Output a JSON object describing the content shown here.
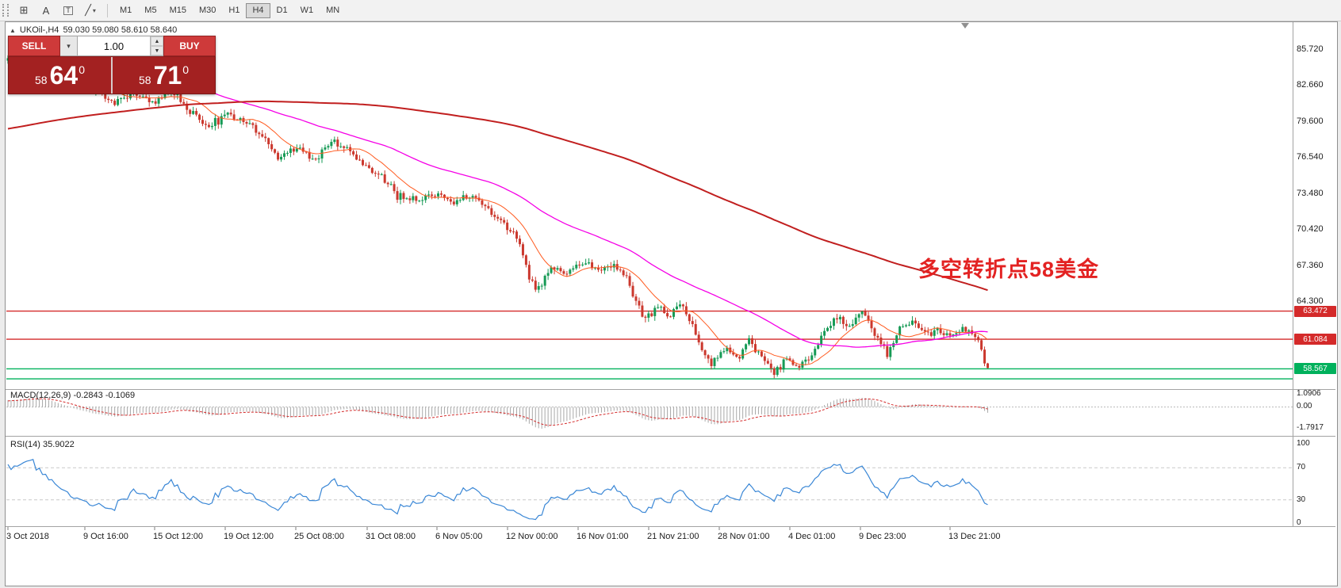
{
  "toolbar": {
    "tools": [
      {
        "name": "grid",
        "glyph": "⊞"
      },
      {
        "name": "text",
        "glyph": "A"
      },
      {
        "name": "text-label",
        "glyph": "T"
      },
      {
        "name": "shapes",
        "glyph": "╱"
      }
    ],
    "timeframes": [
      "M1",
      "M5",
      "M15",
      "M30",
      "H1",
      "H4",
      "D1",
      "W1",
      "MN"
    ],
    "active_timeframe": "H4"
  },
  "chart_header": {
    "window_icon": "▲",
    "symbol": "UKOil-,H4",
    "ohlc": "59.030 59.080 58.610 58.640"
  },
  "trade_panel": {
    "sell_label": "SELL",
    "buy_label": "BUY",
    "volume": "1.00",
    "dropdown_icon": "▾",
    "spin_up": "▲",
    "spin_down": "▼",
    "bid": {
      "small": "58",
      "big": "64",
      "sup": "0"
    },
    "ask": {
      "small": "58",
      "big": "71",
      "sup": "0"
    }
  },
  "annotation": {
    "text": "多空转折点58美金",
    "color": "#e32222"
  },
  "y_axis": [
    "85.720",
    "82.660",
    "79.600",
    "76.540",
    "73.480",
    "70.420",
    "67.360",
    "64.300"
  ],
  "levels": [
    {
      "price": 63.472,
      "label": "63.472",
      "color": "#d42a2a"
    },
    {
      "price": 61.084,
      "label": "61.084",
      "color": "#d42a2a"
    },
    {
      "price": 58.567,
      "label": "58.567",
      "color": "#00b15c"
    },
    {
      "price": 57.72,
      "label": "",
      "color": "#00b15c"
    }
  ],
  "macd_panel": {
    "label": "MACD(12,26,9) -0.2843 -0.1069",
    "scale": [
      "1.0906",
      "0.00",
      "-1.7917"
    ]
  },
  "rsi_panel": {
    "label": "RSI(14) 35.9022",
    "scale": [
      "100",
      "70",
      "30",
      "0"
    ]
  },
  "x_axis": [
    "3 Oct 2018",
    "9 Oct 16:00",
    "15 Oct 12:00",
    "19 Oct 12:00",
    "25 Oct 08:00",
    "31 Oct 08:00",
    "6 Nov 05:00",
    "12 Nov 00:00",
    "16 Nov 01:00",
    "21 Nov 21:00",
    "28 Nov 01:00",
    "4 Dec 01:00",
    "9 Dec 23:00",
    "13 Dec 21:00"
  ],
  "chart_data": {
    "type": "candlestick",
    "symbol": "UKOil",
    "timeframe": "H4",
    "visible_price_range": [
      56.9,
      87.9
    ],
    "last_ohlc": {
      "open": 59.03,
      "high": 59.08,
      "low": 58.61,
      "close": 58.64
    },
    "pre_candles": 260,
    "visible_candles": 313,
    "noise_amp": 0.26,
    "seed": 7,
    "close_waypoints": [
      [
        -260,
        71.2
      ],
      [
        -225,
        73.8
      ],
      [
        -195,
        76.3
      ],
      [
        -165,
        75.2
      ],
      [
        -135,
        77.0
      ],
      [
        -105,
        78.6
      ],
      [
        -75,
        79.9
      ],
      [
        -45,
        81.2
      ],
      [
        -20,
        82.8
      ],
      [
        -8,
        83.8
      ],
      [
        0,
        84.6
      ],
      [
        8,
        86.2
      ],
      [
        13,
        85.2
      ],
      [
        18,
        84.1
      ],
      [
        24,
        83.1
      ],
      [
        28,
        82.2
      ],
      [
        34,
        81.2
      ],
      [
        40,
        82.0
      ],
      [
        46,
        81.1
      ],
      [
        52,
        82.2
      ],
      [
        58,
        80.4
      ],
      [
        64,
        79.2
      ],
      [
        70,
        80.1
      ],
      [
        76,
        79.6
      ],
      [
        80,
        78.5
      ],
      [
        86,
        76.6
      ],
      [
        92,
        77.3
      ],
      [
        98,
        76.4
      ],
      [
        104,
        77.9
      ],
      [
        108,
        77.3
      ],
      [
        112,
        76.2
      ],
      [
        118,
        75.1
      ],
      [
        124,
        73.3
      ],
      [
        130,
        72.8
      ],
      [
        136,
        73.6
      ],
      [
        142,
        72.7
      ],
      [
        148,
        73.5
      ],
      [
        152,
        72.3
      ],
      [
        158,
        70.9
      ],
      [
        162,
        69.9
      ],
      [
        166,
        66.2
      ],
      [
        169,
        65.3
      ],
      [
        173,
        67.2
      ],
      [
        178,
        66.6
      ],
      [
        183,
        67.6
      ],
      [
        188,
        67.0
      ],
      [
        193,
        67.4
      ],
      [
        197,
        66.3
      ],
      [
        200,
        64.2
      ],
      [
        203,
        62.6
      ],
      [
        207,
        63.9
      ],
      [
        211,
        63.1
      ],
      [
        214,
        64.1
      ],
      [
        217,
        62.9
      ],
      [
        220,
        60.7
      ],
      [
        224,
        59.0
      ],
      [
        228,
        60.3
      ],
      [
        232,
        59.5
      ],
      [
        236,
        60.8
      ],
      [
        240,
        59.6
      ],
      [
        244,
        58.1
      ],
      [
        248,
        59.5
      ],
      [
        252,
        58.7
      ],
      [
        256,
        60.0
      ],
      [
        260,
        61.9
      ],
      [
        264,
        62.9
      ],
      [
        268,
        62.2
      ],
      [
        272,
        63.4
      ],
      [
        276,
        61.6
      ],
      [
        280,
        59.7
      ],
      [
        284,
        62.0
      ],
      [
        288,
        62.6
      ],
      [
        292,
        61.4
      ],
      [
        296,
        61.9
      ],
      [
        300,
        61.3
      ],
      [
        304,
        62.1
      ],
      [
        308,
        61.5
      ],
      [
        309,
        61.0
      ],
      [
        310,
        60.2
      ],
      [
        311,
        59.03
      ],
      [
        312,
        58.64
      ]
    ],
    "up_color": "#169a55",
    "down_color": "#cb382e",
    "ma": [
      {
        "period": 13,
        "color": "#ff5a1f",
        "width": 1
      },
      {
        "period": 55,
        "color": "#f500e6",
        "width": 1.3
      },
      {
        "period": 200,
        "color": "#c11f1f",
        "width": 2
      }
    ],
    "macd": {
      "fast": 12,
      "slow": 26,
      "signal": 9,
      "range": [
        -1.7917,
        1.0906
      ],
      "hist_color": "#a8a8a8",
      "signal_color": "#d42a2a",
      "last_main": -0.2843,
      "last_signal": -0.1069
    },
    "rsi": {
      "period": 14,
      "color": "#3a87d6",
      "levels": [
        70,
        30
      ],
      "last_value": 35.9022
    }
  }
}
